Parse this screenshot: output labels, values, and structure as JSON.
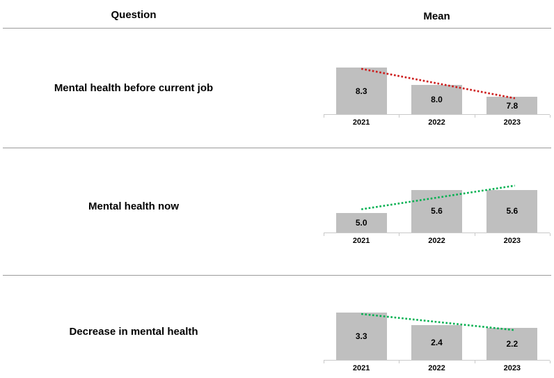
{
  "header": {
    "question": "Question",
    "mean": "Mean"
  },
  "colors": {
    "background": "#FFFFFF",
    "text": "#000000",
    "bar": "#BFBFBF",
    "axis_line": "#C9C9C9",
    "separator": "#9A9A9A",
    "trend_red": "#CC1A1A",
    "trend_green": "#00B050"
  },
  "chart_data": [
    {
      "type": "bar",
      "title": "Mental health before current job",
      "categories": [
        "2021",
        "2022",
        "2023"
      ],
      "values": [
        8.3,
        8.0,
        7.8
      ],
      "data_labels": [
        "8.3",
        "8.0",
        "7.8"
      ],
      "ylim": [
        7.5,
        8.75
      ],
      "grid": false,
      "legend": "none",
      "trendline": {
        "type": "linear",
        "style": "dotted",
        "color": "#CC1A1A",
        "direction": "down"
      }
    },
    {
      "type": "bar",
      "title": "Mental health now",
      "categories": [
        "2021",
        "2022",
        "2023"
      ],
      "values": [
        5.0,
        5.6,
        5.6
      ],
      "data_labels": [
        "5.0",
        "5.6",
        "5.6"
      ],
      "ylim": [
        4.5,
        6.37
      ],
      "grid": false,
      "legend": "none",
      "trendline": {
        "type": "linear",
        "style": "dotted",
        "color": "#00B050",
        "direction": "up"
      }
    },
    {
      "type": "bar",
      "title": "Decrease in mental health",
      "categories": [
        "2021",
        "2022",
        "2023"
      ],
      "values": [
        3.3,
        2.4,
        2.2
      ],
      "data_labels": [
        "3.3",
        "2.4",
        "2.2"
      ],
      "ylim": [
        0,
        3.57
      ],
      "grid": false,
      "legend": "none",
      "trendline": {
        "type": "linear",
        "style": "dotted",
        "color": "#00B050",
        "direction": "down"
      }
    }
  ]
}
